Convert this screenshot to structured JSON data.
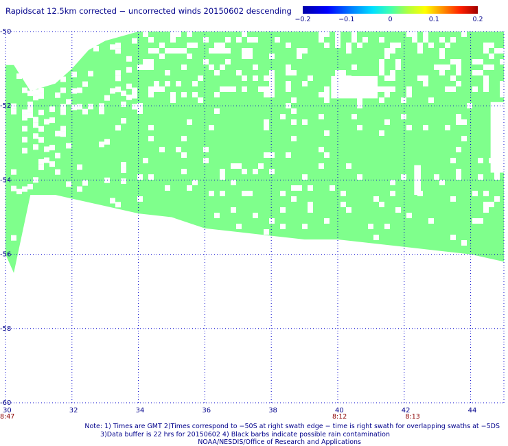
{
  "title": "Rapidscat 12.5km corrected − uncorrected winds 20150602 descending",
  "colorbar": {
    "labels": [
      "−0.2",
      "−0.1",
      "0",
      "0.1",
      "0.2"
    ],
    "values": [
      -0.2,
      -0.1,
      0,
      0.1,
      0.2
    ],
    "colormap": "rainbow (blue to dark red)"
  },
  "notes": [
    "Note: 1) Times are GMT 2)Times correspond to −50S at right swath edge − time is right swath for overlapping swaths at −5DS",
    "3)Data buffer is 22 hrs for 20150602 4) Black barbs indicate possible rain contamination",
    "NOAA/NESDIS/Office of Research and Applications"
  ],
  "chart_data": {
    "type": "heatmap",
    "title": "Rapidscat 12.5km corrected − uncorrected winds 20150602 descending",
    "x_axis": {
      "range": [
        30,
        45
      ],
      "ticks": [
        30,
        32,
        34,
        36,
        38,
        40,
        42,
        44
      ],
      "tick_labels": [
        "30",
        "32",
        "34",
        "36",
        "38",
        "40",
        "42",
        "44"
      ]
    },
    "y_axis": {
      "range": [
        -60,
        -50
      ],
      "ticks": [
        -50,
        -52,
        -54,
        -56,
        -58,
        -60
      ],
      "tick_labels": [
        "-50",
        "-52",
        "-54",
        "-56",
        "-58",
        "-60"
      ]
    },
    "grid": "dotted",
    "fill_color": "#7fff8c",
    "fill_value_approx": 0.0,
    "swath_edges": [
      {
        "lon": 30.0,
        "north": -50.9,
        "south": -56.0
      },
      {
        "lon": 30.25,
        "north": -50.9,
        "south": -56.5
      },
      {
        "lon": 30.75,
        "north": -51.6,
        "south": -54.4
      },
      {
        "lon": 31.5,
        "north": -51.4,
        "south": -54.4
      },
      {
        "lon": 32.0,
        "north": -51.0,
        "south": -54.5
      },
      {
        "lon": 32.5,
        "north": -50.5,
        "south": -54.6
      },
      {
        "lon": 33.0,
        "north": -50.25,
        "south": -54.7
      },
      {
        "lon": 34.0,
        "north": -50.0,
        "south": -54.9
      },
      {
        "lon": 35.0,
        "north": -50.0,
        "south": -55.0
      },
      {
        "lon": 36.0,
        "north": -50.0,
        "south": -55.3
      },
      {
        "lon": 37.0,
        "north": -50.0,
        "south": -55.4
      },
      {
        "lon": 38.0,
        "north": -50.0,
        "south": -55.5
      },
      {
        "lon": 39.0,
        "north": -50.0,
        "south": -55.6
      },
      {
        "lon": 40.0,
        "north": -50.0,
        "south": -55.6
      },
      {
        "lon": 41.0,
        "north": -50.0,
        "south": -55.7
      },
      {
        "lon": 42.0,
        "north": -50.0,
        "south": -55.8
      },
      {
        "lon": 43.0,
        "north": -50.0,
        "south": -55.9
      },
      {
        "lon": 44.0,
        "north": -50.0,
        "south": -56.0
      },
      {
        "lon": 45.0,
        "north": -50.0,
        "south": -56.2
      }
    ],
    "time_labels": [
      {
        "lon": 30.0,
        "text": "8:47"
      },
      {
        "lon": 40.0,
        "text": "8:12"
      },
      {
        "lon": 42.2,
        "text": "8:13"
      }
    ]
  }
}
